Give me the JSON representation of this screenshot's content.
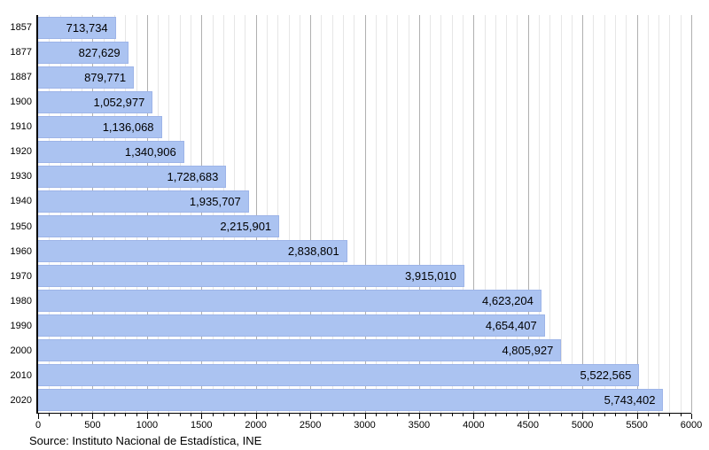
{
  "chart_data": {
    "type": "bar",
    "orientation": "horizontal",
    "title": "",
    "categories": [
      "1857",
      "1877",
      "1887",
      "1900",
      "1910",
      "1920",
      "1930",
      "1940",
      "1950",
      "1960",
      "1970",
      "1980",
      "1990",
      "2000",
      "2010",
      "2020"
    ],
    "values": [
      713734,
      827629,
      879771,
      1052977,
      1136068,
      1340906,
      1728683,
      1935707,
      2215901,
      2838801,
      3915010,
      4623204,
      4654407,
      4805927,
      5522565,
      5743402
    ],
    "value_labels": [
      "713,734",
      "827,629",
      "879,771",
      "1,052,977",
      "1,136,068",
      "1,340,906",
      "1,728,683",
      "1,935,707",
      "2,215,901",
      "2,838,801",
      "3,915,010",
      "4,623,204",
      "4,654,407",
      "4,805,927",
      "5,522,565",
      "5,743,402"
    ],
    "xlabel": "",
    "ylabel": "",
    "xlim": [
      0,
      6000
    ],
    "x_axis_value_divisor": 1000,
    "x_major_step": 500,
    "x_minor_step": 100,
    "x_tick_labels": [
      "0",
      "500",
      "1000",
      "1500",
      "2000",
      "2500",
      "3000",
      "3500",
      "4000",
      "4500",
      "5000",
      "5500",
      "6000"
    ],
    "grid": "vertical minor and major gridlines",
    "legend": "none"
  },
  "source": "Source: Instituto Nacional de Estadística, INE",
  "colors": {
    "background": "#ffffff",
    "bar_fill": "#abc3f1",
    "bar_border": "#9db4e8",
    "grid_minor": "#e6e6e6",
    "grid_major": "#b0b0b0",
    "axis": "#000000",
    "text": "#000000"
  }
}
